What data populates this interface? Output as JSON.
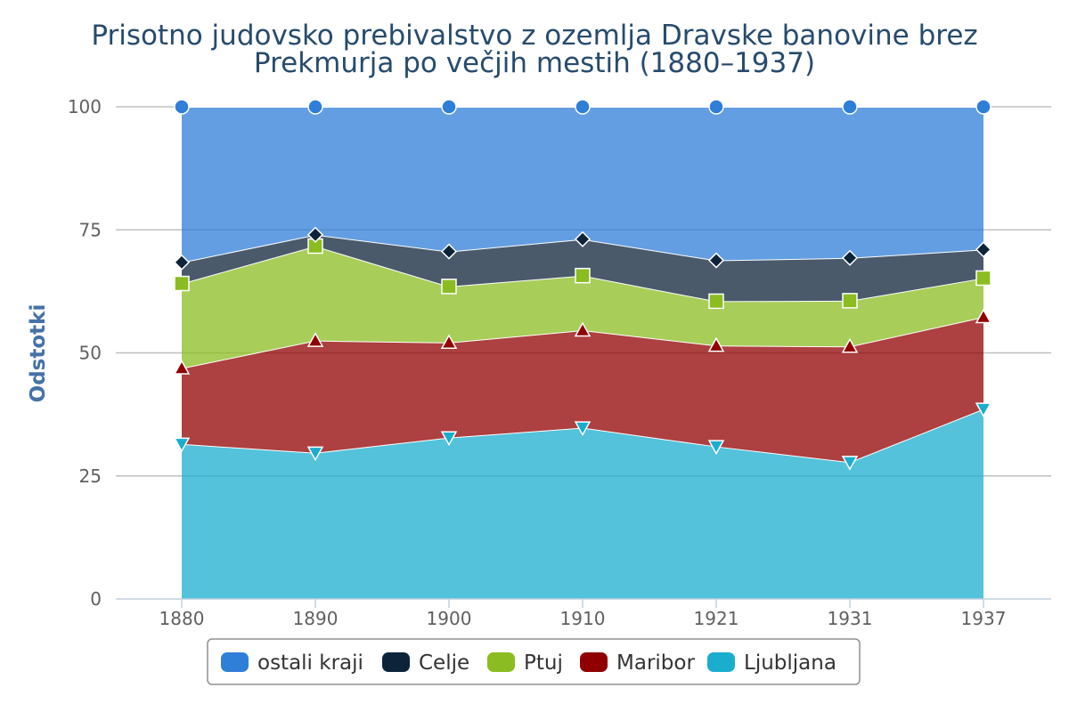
{
  "chart_data": {
    "type": "area",
    "stacking": "percent",
    "title": [
      "Prisotno judovsko prebivalstvo z ozemlja Dravske banovine brez",
      "Prekmurja po večjih mestih (1880–1937)"
    ],
    "xlabel": "",
    "ylabel": "Odstotki",
    "categories": [
      "1880",
      "1890",
      "1900",
      "1910",
      "1921",
      "1931",
      "1937"
    ],
    "y_ticks": [
      "0",
      "25",
      "50",
      "75",
      "100"
    ],
    "ylim": [
      0,
      100
    ],
    "grid": "horizontal",
    "legend_placement": "bottom-center",
    "series": [
      {
        "name": "Ljubljana",
        "color": "#1aadce",
        "marker": "triangle-down",
        "values": [
          31.5,
          29.7,
          32.8,
          34.8,
          31,
          27.8,
          38.6
        ]
      },
      {
        "name": "Maribor",
        "color": "#910000",
        "marker": "triangle",
        "values": [
          15.4,
          22.8,
          19.3,
          19.8,
          20.5,
          23.5,
          18.7
        ]
      },
      {
        "name": "Ptuj",
        "color": "#8bbc21",
        "marker": "square",
        "values": [
          17.2,
          19.2,
          11.4,
          11.1,
          9.0,
          9.3,
          7.9
        ]
      },
      {
        "name": "Celje",
        "color": "#0d233a",
        "marker": "diamond",
        "values": [
          4.3,
          2.3,
          7.1,
          7.4,
          8.3,
          8.7,
          5.8
        ]
      },
      {
        "name": "ostali kraji",
        "color": "#2f7ed8",
        "marker": "circle",
        "values": [
          31.6,
          26.0,
          29.4,
          26.9,
          31.2,
          30.7,
          29.0
        ]
      }
    ],
    "legend_order": [
      "ostali kraji",
      "Celje",
      "Ptuj",
      "Maribor",
      "Ljubljana"
    ]
  }
}
